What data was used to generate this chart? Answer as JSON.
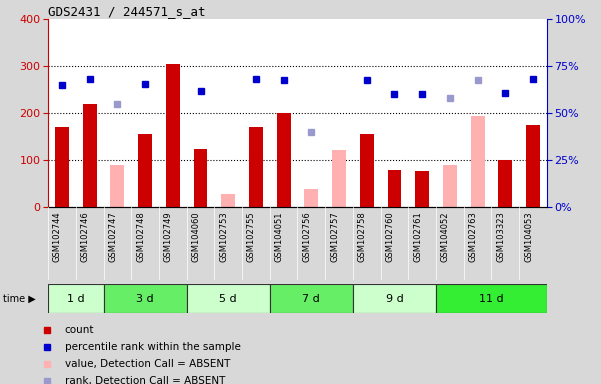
{
  "title": "GDS2431 / 244571_s_at",
  "categories": [
    "GSM102744",
    "GSM102746",
    "GSM102747",
    "GSM102748",
    "GSM102749",
    "GSM104060",
    "GSM102753",
    "GSM102755",
    "GSM104051",
    "GSM102756",
    "GSM102757",
    "GSM102758",
    "GSM102760",
    "GSM102761",
    "GSM104052",
    "GSM102763",
    "GSM103323",
    "GSM104053"
  ],
  "time_groups": [
    {
      "label": "1 d",
      "start": 0,
      "end": 2,
      "color": "#ccffcc"
    },
    {
      "label": "3 d",
      "start": 2,
      "end": 5,
      "color": "#66ee66"
    },
    {
      "label": "5 d",
      "start": 5,
      "end": 8,
      "color": "#ccffcc"
    },
    {
      "label": "7 d",
      "start": 8,
      "end": 11,
      "color": "#66ee66"
    },
    {
      "label": "9 d",
      "start": 11,
      "end": 14,
      "color": "#ccffcc"
    },
    {
      "label": "11 d",
      "start": 14,
      "end": 18,
      "color": "#33ee33"
    }
  ],
  "count_values": [
    170,
    220,
    null,
    155,
    305,
    125,
    null,
    170,
    200,
    null,
    null,
    155,
    80,
    78,
    null,
    null,
    100,
    175
  ],
  "count_color": "#cc0000",
  "absent_value": [
    null,
    null,
    90,
    null,
    null,
    null,
    28,
    null,
    null,
    40,
    122,
    null,
    null,
    null,
    90,
    195,
    null,
    null
  ],
  "absent_value_color": "#ffb0b0",
  "percentile_rank": [
    260,
    272,
    null,
    263,
    null,
    248,
    null,
    272,
    270,
    null,
    null,
    270,
    242,
    242,
    null,
    null,
    243,
    272
  ],
  "absent_rank": [
    null,
    null,
    220,
    null,
    null,
    null,
    null,
    null,
    null,
    160,
    null,
    null,
    null,
    null,
    232,
    270,
    null,
    null
  ],
  "percentile_color": "#0000cc",
  "absent_rank_color": "#9999cc",
  "ylim_left": [
    0,
    400
  ],
  "ylim_right": [
    0,
    100
  ],
  "yticks_left": [
    0,
    100,
    200,
    300,
    400
  ],
  "ytick_labels_right": [
    "0%",
    "25%",
    "50%",
    "75%",
    "100%"
  ],
  "bg_color": "#d8d8d8",
  "plot_bg": "#ffffff",
  "xtick_bg": "#c8c8c8",
  "legend_items": [
    {
      "label": "count",
      "color": "#cc0000"
    },
    {
      "label": "percentile rank within the sample",
      "color": "#0000cc"
    },
    {
      "label": "value, Detection Call = ABSENT",
      "color": "#ffb0b0"
    },
    {
      "label": "rank, Detection Call = ABSENT",
      "color": "#9999cc"
    }
  ]
}
